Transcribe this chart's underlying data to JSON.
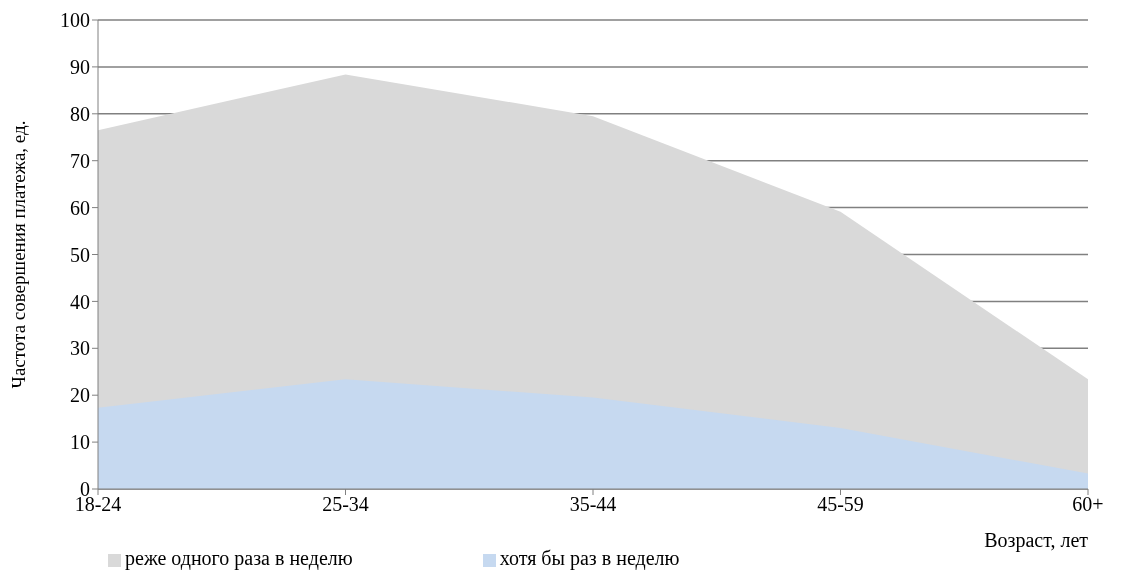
{
  "chart_data": {
    "type": "area",
    "xlabel": "Возраст, лет",
    "ylabel": "Частота совершения платежа, ед.",
    "categories": [
      "18-24",
      "25-34",
      "35-44",
      "45-59",
      "60+"
    ],
    "series": [
      {
        "name": "реже одного раза в неделю",
        "color": "#d9d9d9",
        "values": [
          76.5,
          88.4,
          79.5,
          59.1,
          23.4
        ]
      },
      {
        "name": "хотя бы раз в неделю",
        "color": "#c6d9f0",
        "values": [
          17.3,
          23.4,
          19.5,
          13.0,
          3.3
        ]
      }
    ],
    "ylim": [
      0,
      100
    ],
    "yticks": [
      0,
      10,
      20,
      30,
      40,
      50,
      60,
      70,
      80,
      90,
      100
    ],
    "grid": "y",
    "legend": "bottom left"
  }
}
